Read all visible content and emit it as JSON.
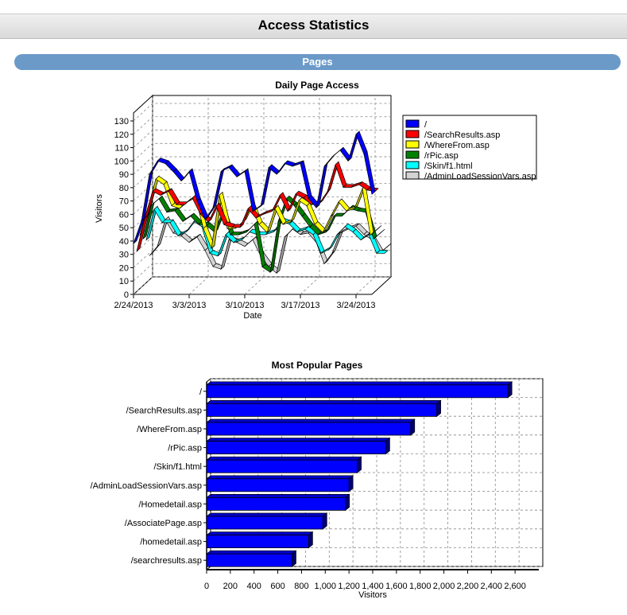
{
  "header": {
    "title": "Access Statistics"
  },
  "section": {
    "title": "Pages"
  },
  "colors": {
    "section_bar": "#6b9ac9"
  },
  "chart_data": [
    {
      "type": "line",
      "title": "Daily Page Access",
      "xlabel": "Date",
      "ylabel": "Visitors",
      "x": [
        "2/24/2013",
        "2/25/2013",
        "2/26/2013",
        "2/27/2013",
        "2/28/2013",
        "3/1/2013",
        "3/2/2013",
        "3/3/2013",
        "3/4/2013",
        "3/5/2013",
        "3/6/2013",
        "3/7/2013",
        "3/8/2013",
        "3/9/2013",
        "3/10/2013",
        "3/11/2013",
        "3/12/2013",
        "3/13/2013",
        "3/14/2013",
        "3/15/2013",
        "3/16/2013",
        "3/17/2013",
        "3/18/2013",
        "3/19/2013",
        "3/20/2013",
        "3/21/2013",
        "3/22/2013",
        "3/23/2013",
        "3/24/2013",
        "3/25/2013",
        "3/26/2013"
      ],
      "x_ticks": [
        "2/24/2013",
        "3/3/2013",
        "3/10/2013",
        "3/17/2013",
        "3/24/2013"
      ],
      "x_tick_index": [
        0,
        7,
        14,
        21,
        28
      ],
      "ylim": [
        0,
        130
      ],
      "yticks": [
        0,
        10,
        20,
        30,
        40,
        50,
        60,
        70,
        80,
        90,
        100,
        110,
        120,
        130
      ],
      "grid": true,
      "legend_position": "right",
      "series": [
        {
          "name": "/",
          "color": "#0000ff",
          "values": [
            38,
            55,
            90,
            100,
            98,
            92,
            85,
            92,
            70,
            56,
            65,
            92,
            95,
            88,
            92,
            62,
            66,
            95,
            90,
            98,
            96,
            98,
            72,
            65,
            96,
            103,
            108,
            100,
            120,
            105,
            75
          ]
        },
        {
          "name": "/SearchResults.asp",
          "color": "#ff0000",
          "values": [
            30,
            55,
            75,
            72,
            75,
            65,
            65,
            70,
            58,
            52,
            64,
            50,
            48,
            48,
            62,
            55,
            58,
            60,
            72,
            60,
            73,
            70,
            65,
            66,
            75,
            95,
            78,
            78,
            80,
            76,
            75
          ]
        },
        {
          "name": "/WhereFrom.asp",
          "color": "#ffff00",
          "values": [
            40,
            60,
            82,
            78,
            62,
            60,
            65,
            68,
            45,
            30,
            70,
            45,
            45,
            50,
            62,
            48,
            42,
            60,
            48,
            50,
            66,
            62,
            48,
            42,
            54,
            65,
            58,
            60,
            75,
            40,
            45
          ]
        },
        {
          "name": "/rPic.asp",
          "color": "#008000",
          "values": [
            35,
            60,
            65,
            55,
            56,
            48,
            52,
            46,
            45,
            40,
            55,
            38,
            38,
            40,
            46,
            14,
            10,
            48,
            65,
            60,
            52,
            44,
            38,
            40,
            52,
            52,
            58,
            56,
            55,
            35,
            40
          ]
        },
        {
          "name": "/Skin/f1.html",
          "color": "#00ffff",
          "values": [
            32,
            55,
            45,
            45,
            35,
            38,
            46,
            42,
            22,
            20,
            36,
            30,
            32,
            38,
            36,
            36,
            38,
            46,
            44,
            38,
            40,
            36,
            22,
            25,
            36,
            42,
            38,
            32,
            36,
            22,
            22
          ]
        },
        {
          "name": "/AdminLoadSessionVars.asp",
          "color": "#d3d3d3",
          "values": [
            18,
            25,
            45,
            35,
            33,
            28,
            32,
            22,
            10,
            8,
            30,
            28,
            25,
            30,
            18,
            10,
            5,
            32,
            38,
            34,
            35,
            28,
            12,
            20,
            35,
            38,
            40,
            34,
            30,
            20,
            25
          ]
        }
      ]
    },
    {
      "type": "bar",
      "orientation": "horizontal",
      "title": "Most Popular Pages",
      "xlabel": "Visitors",
      "ylabel": "",
      "color": "#0000ff",
      "xlim": [
        0,
        2800
      ],
      "xticks": [
        0,
        200,
        400,
        600,
        800,
        1000,
        1200,
        1400,
        1600,
        1800,
        2000,
        2200,
        2400,
        2600
      ],
      "xtick_labels": [
        "0",
        "200",
        "400",
        "600",
        "800",
        "1,000",
        "1,200",
        "1,400",
        "1,600",
        "1,800",
        "2,000",
        "2,200",
        "2,400",
        "2,600"
      ],
      "grid": true,
      "categories": [
        "/",
        "/SearchResults.asp",
        "/WhereFrom.asp",
        "/rPic.asp",
        "/Skin/f1.html",
        "/AdminLoadSessionVars.asp",
        "/Homedetail.asp",
        "/AssociatePage.asp",
        "/homedetail.asp",
        "/searchresults.asp"
      ],
      "values": [
        2540,
        1940,
        1720,
        1510,
        1270,
        1200,
        1170,
        980,
        860,
        720
      ]
    }
  ]
}
